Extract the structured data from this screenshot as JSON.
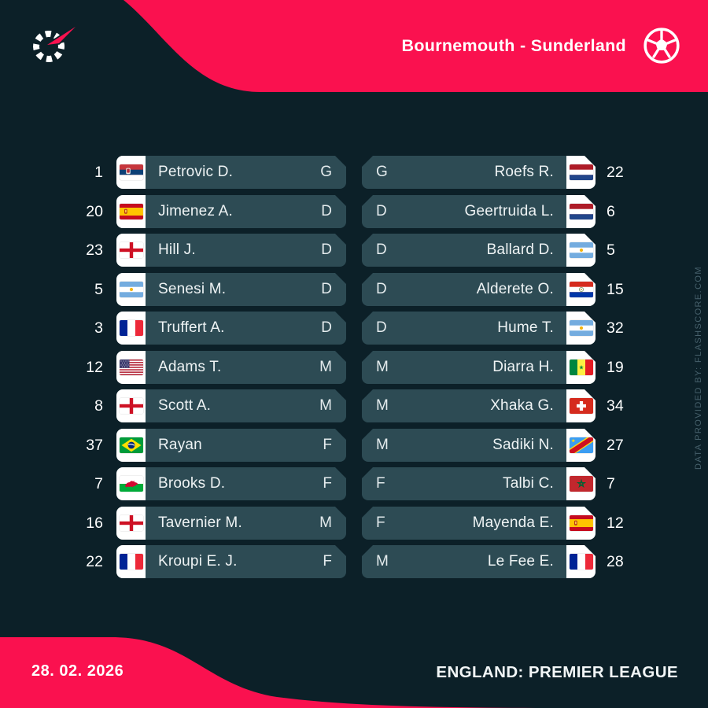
{
  "colors": {
    "background": "#0c2028",
    "accent": "#fa114f",
    "pill": "#2d4b54",
    "flag_box": "#ffffff",
    "text": "#ffffff",
    "watermark_text": "#47616c"
  },
  "header": {
    "title": "Bournemouth - Sunderland"
  },
  "lineups": {
    "home": {
      "team": "Bournemouth",
      "players": [
        {
          "number": "1",
          "flag": "serbia",
          "name": "Petrovic D.",
          "position": "G"
        },
        {
          "number": "20",
          "flag": "spain",
          "name": "Jimenez A.",
          "position": "D"
        },
        {
          "number": "23",
          "flag": "england",
          "name": "Hill J.",
          "position": "D"
        },
        {
          "number": "5",
          "flag": "argentina",
          "name": "Senesi M.",
          "position": "D"
        },
        {
          "number": "3",
          "flag": "france",
          "name": "Truffert A.",
          "position": "D"
        },
        {
          "number": "12",
          "flag": "usa",
          "name": "Adams T.",
          "position": "M"
        },
        {
          "number": "8",
          "flag": "england",
          "name": "Scott A.",
          "position": "M"
        },
        {
          "number": "37",
          "flag": "brazil",
          "name": "Rayan",
          "position": "F"
        },
        {
          "number": "7",
          "flag": "wales",
          "name": "Brooks D.",
          "position": "F"
        },
        {
          "number": "16",
          "flag": "england",
          "name": "Tavernier M.",
          "position": "M"
        },
        {
          "number": "22",
          "flag": "france",
          "name": "Kroupi E. J.",
          "position": "F"
        }
      ]
    },
    "away": {
      "team": "Sunderland",
      "players": [
        {
          "number": "22",
          "flag": "netherlands",
          "name": "Roefs R.",
          "position": "G"
        },
        {
          "number": "6",
          "flag": "netherlands",
          "name": "Geertruida L.",
          "position": "D"
        },
        {
          "number": "5",
          "flag": "argentina",
          "name": "Ballard D.",
          "position": "D"
        },
        {
          "number": "15",
          "flag": "paraguay",
          "name": "Alderete O.",
          "position": "D"
        },
        {
          "number": "32",
          "flag": "argentina",
          "name": "Hume T.",
          "position": "D"
        },
        {
          "number": "19",
          "flag": "senegal",
          "name": "Diarra H.",
          "position": "M"
        },
        {
          "number": "34",
          "flag": "switzerland",
          "name": "Xhaka G.",
          "position": "M"
        },
        {
          "number": "27",
          "flag": "dr-congo",
          "name": "Sadiki N.",
          "position": "M"
        },
        {
          "number": "7",
          "flag": "morocco",
          "name": "Talbi C.",
          "position": "F"
        },
        {
          "number": "12",
          "flag": "spain",
          "name": "Mayenda E.",
          "position": "F"
        },
        {
          "number": "28",
          "flag": "france",
          "name": "Le Fee E.",
          "position": "M"
        }
      ]
    }
  },
  "footer": {
    "date": "28. 02. 2026",
    "league": "ENGLAND: PREMIER LEAGUE"
  },
  "watermark": "DATA PROVIDED BY: FLASHSCORE.COM"
}
